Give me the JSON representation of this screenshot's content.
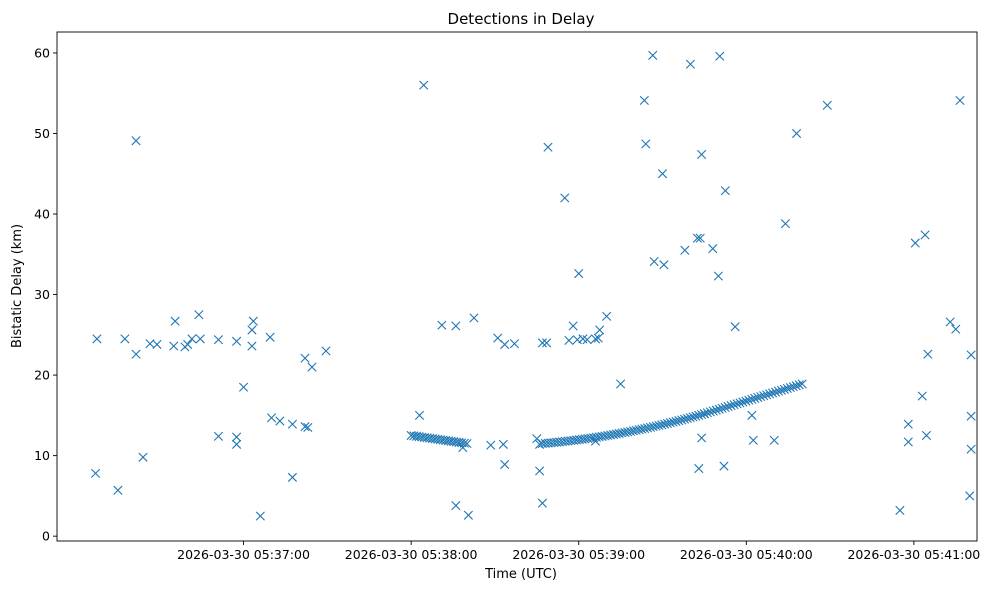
{
  "chart_data": {
    "type": "scatter",
    "title": "Detections in Delay",
    "xlabel": "Time (UTC)",
    "ylabel": "Bistatic Delay (km)",
    "x_unit": "seconds after 2026-03-30 05:36:00",
    "xlim": [
      -6.8,
      322.6
    ],
    "ylim": [
      -0.6,
      62.6
    ],
    "marker": "x",
    "color": "#1f77b4",
    "x_ticks": [
      {
        "value": 60,
        "label": "2026-03-30 05:37:00"
      },
      {
        "value": 120,
        "label": "2026-03-30 05:38:00"
      },
      {
        "value": 180,
        "label": "2026-03-30 05:39:00"
      },
      {
        "value": 240,
        "label": "2026-03-30 05:40:00"
      },
      {
        "value": 300,
        "label": "2026-03-30 05:41:00"
      }
    ],
    "y_ticks": [
      {
        "value": 0,
        "label": "0"
      },
      {
        "value": 10,
        "label": "10"
      },
      {
        "value": 20,
        "label": "20"
      },
      {
        "value": 30,
        "label": "30"
      },
      {
        "value": 40,
        "label": "40"
      },
      {
        "value": 50,
        "label": "50"
      },
      {
        "value": 60,
        "label": "60"
      }
    ],
    "track_segments": [
      {
        "x_start": 120,
        "x_end": 140,
        "y_start": 12.5,
        "y_end": 11.5,
        "shape": "linear",
        "points": 22
      },
      {
        "x_start": 167,
        "x_end": 225,
        "y_start": 11.5,
        "y_end": 15.2,
        "shape": "convex",
        "points": 58
      },
      {
        "x_start": 225,
        "x_end": 260,
        "y_start": 15.2,
        "y_end": 18.9,
        "shape": "linear",
        "points": 34
      }
    ],
    "points": [
      [
        7,
        7.8
      ],
      [
        7.5,
        24.5
      ],
      [
        15,
        5.7
      ],
      [
        17.5,
        24.5
      ],
      [
        21.5,
        49.1
      ],
      [
        21.5,
        22.6
      ],
      [
        24,
        9.8
      ],
      [
        26.5,
        23.9
      ],
      [
        29,
        23.8
      ],
      [
        35,
        23.6
      ],
      [
        35.5,
        26.7
      ],
      [
        39,
        23.5
      ],
      [
        40,
        23.8
      ],
      [
        41.5,
        24.5
      ],
      [
        44,
        27.5
      ],
      [
        44.5,
        24.5
      ],
      [
        51,
        12.4
      ],
      [
        51,
        24.4
      ],
      [
        57.5,
        24.2
      ],
      [
        57.5,
        12.3
      ],
      [
        57.5,
        11.4
      ],
      [
        60,
        18.5
      ],
      [
        63,
        23.6
      ],
      [
        63,
        25.6
      ],
      [
        63.5,
        26.7
      ],
      [
        66,
        2.5
      ],
      [
        69.5,
        24.7
      ],
      [
        70,
        14.7
      ],
      [
        73,
        14.3
      ],
      [
        77.5,
        7.3
      ],
      [
        77.5,
        13.9
      ],
      [
        82,
        22.1
      ],
      [
        82,
        13.6
      ],
      [
        83,
        13.5
      ],
      [
        84.5,
        21
      ],
      [
        89.5,
        23
      ],
      [
        123,
        15
      ],
      [
        124.5,
        56
      ],
      [
        131,
        26.2
      ],
      [
        136,
        26.1
      ],
      [
        136,
        3.8
      ],
      [
        138.5,
        11
      ],
      [
        140.5,
        2.6
      ],
      [
        142.5,
        27.1
      ],
      [
        148.5,
        11.3
      ],
      [
        151,
        24.6
      ],
      [
        153,
        11.4
      ],
      [
        153.5,
        23.8
      ],
      [
        153.5,
        8.9
      ],
      [
        157,
        23.9
      ],
      [
        165,
        12.1
      ],
      [
        166,
        11.4
      ],
      [
        166,
        8.1
      ],
      [
        167,
        24
      ],
      [
        167,
        4.1
      ],
      [
        168.5,
        24
      ],
      [
        169,
        48.3
      ],
      [
        175,
        42
      ],
      [
        176.5,
        24.3
      ],
      [
        178,
        26.1
      ],
      [
        179.5,
        24.4
      ],
      [
        180,
        32.6
      ],
      [
        181.5,
        24.5
      ],
      [
        183,
        24.4
      ],
      [
        186,
        24.5
      ],
      [
        186,
        11.8
      ],
      [
        187,
        24.6
      ],
      [
        187.5,
        25.6
      ],
      [
        190,
        27.3
      ],
      [
        195,
        18.9
      ],
      [
        203.5,
        54.1
      ],
      [
        204,
        48.7
      ],
      [
        206.5,
        59.7
      ],
      [
        207,
        34.1
      ],
      [
        210,
        45
      ],
      [
        210.5,
        33.7
      ],
      [
        218,
        35.5
      ],
      [
        220,
        58.6
      ],
      [
        222.5,
        37
      ],
      [
        223,
        8.4
      ],
      [
        223.5,
        37
      ],
      [
        224,
        47.4
      ],
      [
        224,
        12.2
      ],
      [
        228,
        35.7
      ],
      [
        230,
        32.3
      ],
      [
        230.5,
        59.6
      ],
      [
        232,
        8.7
      ],
      [
        232.5,
        42.9
      ],
      [
        236,
        26
      ],
      [
        242,
        15
      ],
      [
        242.5,
        11.9
      ],
      [
        250,
        11.9
      ],
      [
        254,
        38.8
      ],
      [
        258,
        50
      ],
      [
        269,
        53.5
      ],
      [
        295,
        3.2
      ],
      [
        298,
        13.9
      ],
      [
        298,
        11.7
      ],
      [
        300.5,
        36.4
      ],
      [
        303,
        17.4
      ],
      [
        304,
        37.4
      ],
      [
        304.5,
        12.5
      ],
      [
        305,
        22.6
      ],
      [
        313,
        26.6
      ],
      [
        315,
        25.7
      ],
      [
        316.5,
        54.1
      ],
      [
        320,
        5
      ],
      [
        320.5,
        22.5
      ],
      [
        320.5,
        10.8
      ],
      [
        320.5,
        14.9
      ]
    ]
  }
}
